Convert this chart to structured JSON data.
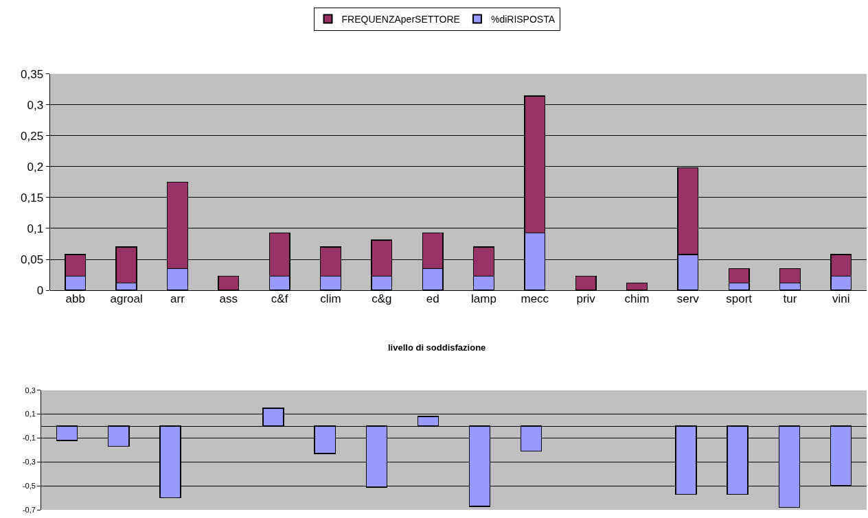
{
  "chart_data": [
    {
      "type": "bar",
      "stacked": true,
      "legend": "top",
      "grid": "y",
      "categories": [
        "abb",
        "agroal",
        "arr",
        "ass",
        "c&f",
        "clim",
        "c&g",
        "ed",
        "lamp",
        "mecc",
        "priv",
        "chim",
        "serv",
        "sport",
        "tur",
        "vini"
      ],
      "series": [
        {
          "name": "%diRISPOSTA",
          "color": "#9999ff",
          "values": [
            0.023,
            0.012,
            0.035,
            0,
            0.023,
            0.023,
            0.023,
            0.035,
            0.023,
            0.093,
            0,
            0,
            0.058,
            0.012,
            0.012,
            0.023
          ]
        },
        {
          "name": "FREQUENZAperSETTORE",
          "color": "#993366",
          "values": [
            0.035,
            0.058,
            0.14,
            0.023,
            0.07,
            0.047,
            0.058,
            0.058,
            0.047,
            0.221,
            0.023,
            0.012,
            0.14,
            0.023,
            0.023,
            0.035
          ]
        }
      ],
      "ylim": [
        0,
        0.35
      ],
      "yticks": [
        {
          "value": 0,
          "label": "0"
        },
        {
          "value": 0.05,
          "label": "0,05"
        },
        {
          "value": 0.1,
          "label": "0,1"
        },
        {
          "value": 0.15,
          "label": "0,15"
        },
        {
          "value": 0.2,
          "label": "0,2"
        },
        {
          "value": 0.25,
          "label": "0,25"
        },
        {
          "value": 0.3,
          "label": "0,3"
        },
        {
          "value": 0.35,
          "label": "0,35"
        }
      ]
    },
    {
      "type": "bar",
      "title": "livello di soddisfazione",
      "grid": "y",
      "tick_labels": "y",
      "categories": [
        null,
        null,
        null,
        null,
        null,
        null,
        null,
        null,
        null,
        null,
        null,
        null,
        null,
        null,
        null,
        null
      ],
      "series": [
        {
          "color": "#9999ff",
          "values": [
            -0.12,
            -0.17,
            -0.6,
            null,
            0.15,
            -0.23,
            -0.51,
            0.08,
            -0.67,
            -0.21,
            null,
            null,
            -0.57,
            -0.57,
            -0.68,
            -0.5
          ]
        }
      ],
      "ylim": [
        -0.7,
        0.3
      ],
      "yticks": [
        {
          "value": 0.3,
          "label": "0,3"
        },
        {
          "value": 0.1,
          "label": "0,1"
        },
        {
          "value": -0.1,
          "label": "-0,1"
        },
        {
          "value": -0.3,
          "label": "-0,3"
        },
        {
          "value": -0.5,
          "label": "-0,5"
        },
        {
          "value": -0.7,
          "label": "-0,7"
        }
      ]
    }
  ]
}
